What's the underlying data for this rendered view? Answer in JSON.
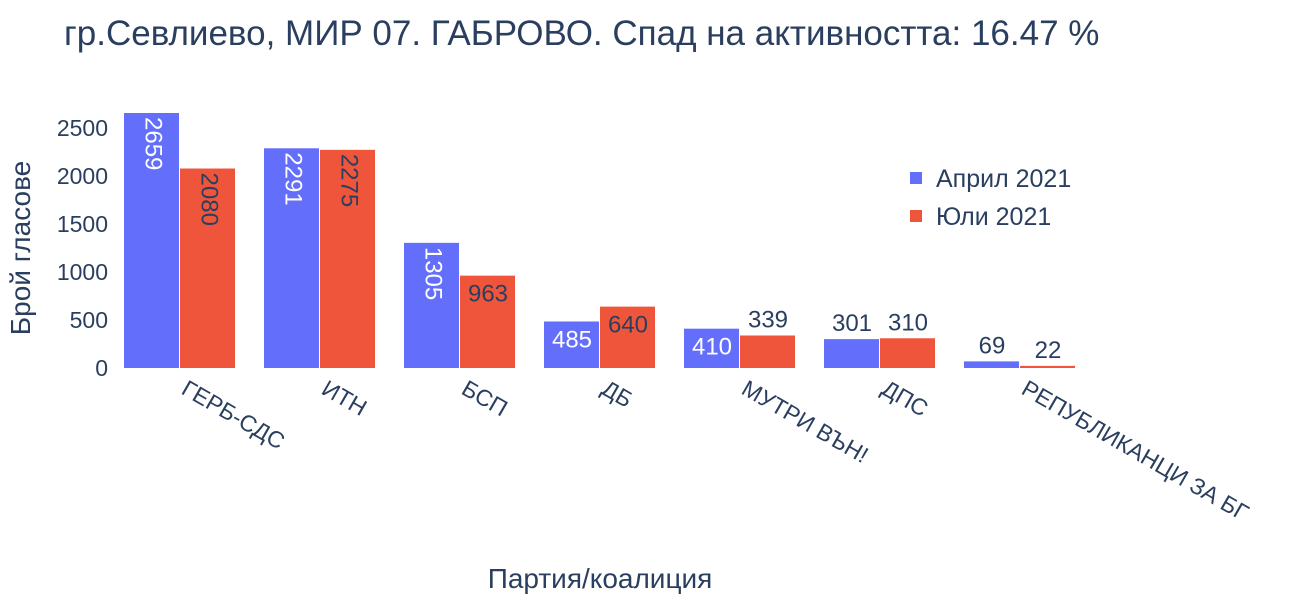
{
  "chart_data": {
    "type": "bar",
    "title": "гр.Севлиево, МИР 07. ГАБРОВО. Спад на активността: 16.47 %",
    "xlabel": "Партия/коалиция",
    "ylabel": "Брой гласове",
    "categories": [
      "ГЕРБ-СДС",
      "ИТН",
      "БСП",
      "ДБ",
      "МУТРИ ВЪН!",
      "ДПС",
      "РЕПУБЛИКАНЦИ ЗА БГ"
    ],
    "series": [
      {
        "name": "Април 2021",
        "color": "#636efa",
        "values": [
          2659,
          2291,
          1305,
          485,
          410,
          301,
          69
        ]
      },
      {
        "name": "Юли 2021",
        "color": "#ef553b",
        "values": [
          2080,
          2275,
          963,
          640,
          339,
          310,
          22
        ]
      }
    ],
    "yticks": [
      0,
      500,
      1000,
      1500,
      2000,
      2500
    ],
    "ylim": [
      0,
      2659
    ],
    "grid": false,
    "legend_position": "top-right"
  }
}
